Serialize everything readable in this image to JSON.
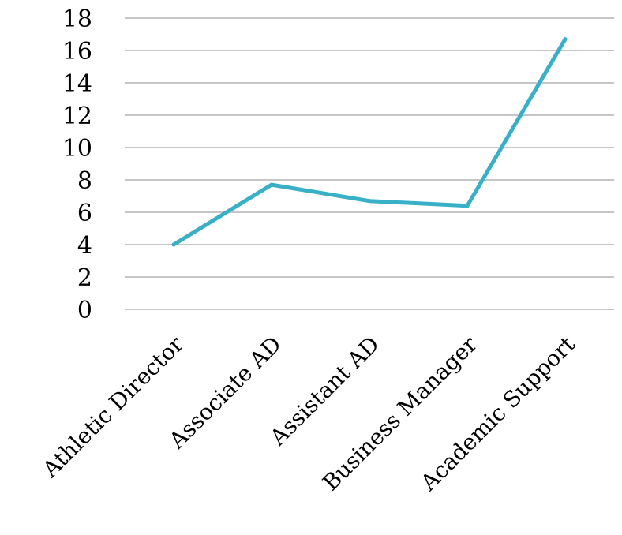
{
  "chart_data": {
    "type": "line",
    "categories": [
      "Athletic Director",
      "Associate AD",
      "Assistant AD",
      "Business Manager",
      "Academic Support"
    ],
    "series": [
      {
        "values": [
          4.0,
          7.7,
          6.7,
          6.4,
          16.7
        ]
      }
    ],
    "ylim": [
      0,
      18
    ],
    "yticks": [
      "0",
      "2",
      "4",
      "6",
      "8",
      "10",
      "12",
      "14",
      "16",
      "18"
    ],
    "grid": true,
    "legend": "none",
    "line_color": "#3aafc8"
  }
}
